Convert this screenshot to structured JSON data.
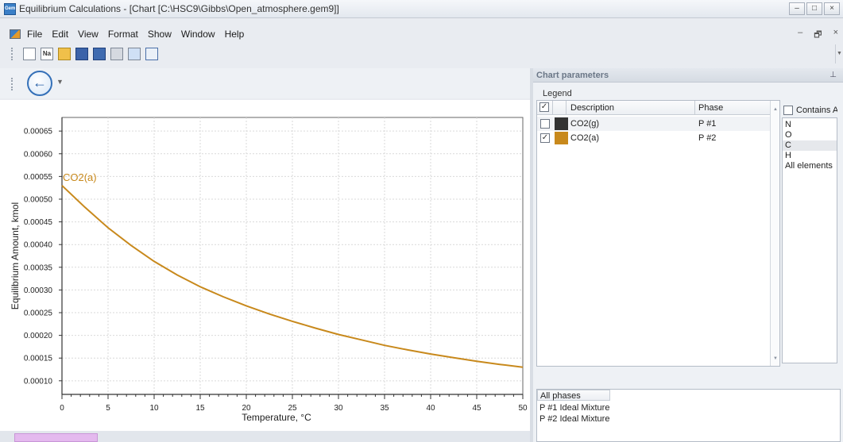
{
  "window": {
    "title": "Equilibrium Calculations - [Chart [C:\\HSC9\\Gibbs\\Open_atmosphere.gem9]]",
    "app_icon_text": "Gem",
    "controls": [
      "–",
      "□",
      "×"
    ]
  },
  "menu": {
    "items": [
      "File",
      "Edit",
      "View",
      "Format",
      "Show",
      "Window",
      "Help"
    ],
    "mdi_controls": [
      "–",
      "🗗",
      "×"
    ]
  },
  "toolbar": {
    "na_label": "Na",
    "tools": [
      "new-file-icon",
      "element-icon",
      "open-folder-icon",
      "save-icon",
      "save-as-icon",
      "print-icon",
      "copy-icon",
      "table-icon"
    ]
  },
  "chart_data": {
    "type": "line",
    "xlabel": "Temperature, °C",
    "ylabel": "Equilibrium Amount, kmol",
    "xlim": [
      0,
      50
    ],
    "ylim": [
      7e-05,
      0.00068
    ],
    "x_ticks": [
      0,
      5,
      10,
      15,
      20,
      25,
      30,
      35,
      40,
      45,
      50
    ],
    "y_ticks": [
      0.0001,
      0.00015,
      0.0002,
      0.00025,
      0.0003,
      0.00035,
      0.0004,
      0.00045,
      0.0005,
      0.00055,
      0.0006,
      0.00065
    ],
    "y_tick_labels": [
      "0.00010",
      "0.00015",
      "0.00020",
      "0.00025",
      "0.00030",
      "0.00035",
      "0.00040",
      "0.00045",
      "0.00050",
      "0.00055",
      "0.00060",
      "0.00065"
    ],
    "grid": true,
    "series": [
      {
        "name": "CO2(a)",
        "color": "#c8891c",
        "x": [
          0,
          2.5,
          5,
          7.5,
          10,
          12.5,
          15,
          17.5,
          20,
          22.5,
          25,
          27.5,
          30,
          32.5,
          35,
          37.5,
          40,
          42.5,
          45,
          47.5,
          50
        ],
        "y": [
          0.00053,
          0.000482,
          0.000437,
          0.000398,
          0.000363,
          0.000333,
          0.000307,
          0.000285,
          0.000265,
          0.000247,
          0.000231,
          0.000216,
          0.000202,
          0.00019,
          0.000178,
          0.000168,
          0.000159,
          0.000151,
          0.000143,
          0.000136,
          0.00013
        ]
      }
    ]
  },
  "chart_parameters": {
    "title": "Chart parameters",
    "pin": "⊥",
    "legend_label": "Legend",
    "columns": {
      "description": "Description",
      "phase": "Phase"
    },
    "rows": [
      {
        "checked": false,
        "check_mark": "",
        "color": "#333333",
        "description": "CO2(g)",
        "phase": "P #1"
      },
      {
        "checked": true,
        "check_mark": "✓",
        "color": "#c8891c",
        "description": "CO2(a)",
        "phase": "P #2"
      }
    ],
    "header_check_mark": "✓",
    "contains_label": "Contains Al",
    "elements": [
      "N",
      "O",
      "C",
      "H",
      "All elements"
    ],
    "selected_element": "C",
    "phases_header": "All phases",
    "phases": [
      "P #1 Ideal Mixture",
      "P #2 Ideal Mixture"
    ]
  }
}
